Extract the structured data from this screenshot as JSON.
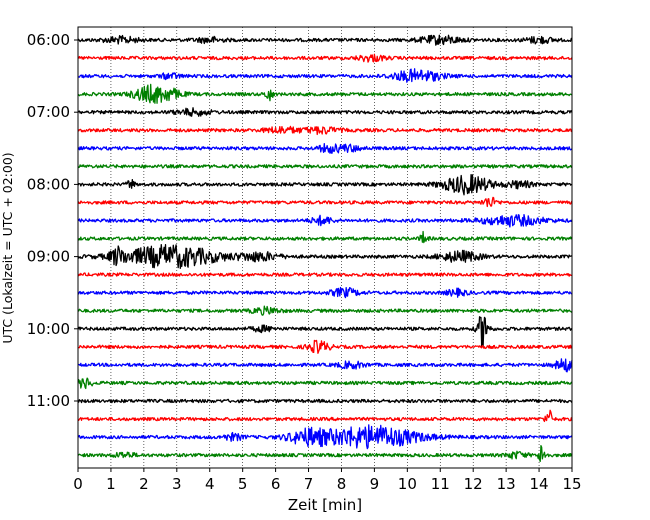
{
  "chart_data": {
    "type": "line",
    "title": "",
    "xlabel": "Zeit  [min]",
    "ylabel": "UTC (Lokalzeit = UTC + 02:00)",
    "xlim": [
      0,
      15
    ],
    "x_ticks": [
      0,
      1,
      2,
      3,
      4,
      5,
      6,
      7,
      8,
      9,
      10,
      11,
      12,
      13,
      14,
      15
    ],
    "y_tick_labels": [
      "06:00",
      "07:00",
      "08:00",
      "09:00",
      "10:00",
      "11:00"
    ],
    "y_tick_trace_index": [
      0,
      4,
      8,
      12,
      16,
      20
    ],
    "grid": "vertical dotted",
    "trace_interval_min": 15,
    "start_time": "06:00",
    "color_cycle": [
      "#000000",
      "#ff0000",
      "#0000ff",
      "#008000"
    ],
    "traces": [
      {
        "index": 0,
        "events": [
          {
            "t": 1.3,
            "amp": 3,
            "dur": 0.5
          },
          {
            "t": 4.0,
            "amp": 2.5,
            "dur": 0.4
          },
          {
            "t": 11.0,
            "amp": 4,
            "dur": 0.6
          },
          {
            "t": 14.0,
            "amp": 3,
            "dur": 0.4
          }
        ]
      },
      {
        "index": 1,
        "events": [
          {
            "t": 8.9,
            "amp": 3,
            "dur": 0.4
          }
        ]
      },
      {
        "index": 2,
        "events": [
          {
            "t": 10.3,
            "amp": 6,
            "dur": 0.7
          },
          {
            "t": 2.8,
            "amp": 2.5,
            "dur": 0.3
          }
        ]
      },
      {
        "index": 3,
        "events": [
          {
            "t": 2.2,
            "amp": 8,
            "dur": 0.5
          },
          {
            "t": 2.8,
            "amp": 4,
            "dur": 0.4
          },
          {
            "t": 5.8,
            "amp": 7,
            "dur": 0.1
          }
        ]
      },
      {
        "index": 4,
        "events": [
          {
            "t": 3.5,
            "amp": 3,
            "dur": 0.5
          }
        ]
      },
      {
        "index": 5,
        "events": [
          {
            "t": 6.2,
            "amp": 3,
            "dur": 0.5
          },
          {
            "t": 7.4,
            "amp": 3,
            "dur": 0.5
          }
        ]
      },
      {
        "index": 6,
        "events": [
          {
            "t": 7.6,
            "amp": 3.5,
            "dur": 0.3
          },
          {
            "t": 8.2,
            "amp": 3,
            "dur": 0.4
          }
        ]
      },
      {
        "index": 7,
        "events": []
      },
      {
        "index": 8,
        "events": [
          {
            "t": 1.6,
            "amp": 5,
            "dur": 0.1
          },
          {
            "t": 11.8,
            "amp": 9,
            "dur": 0.7
          },
          {
            "t": 13.4,
            "amp": 3,
            "dur": 0.4
          }
        ]
      },
      {
        "index": 9,
        "events": [
          {
            "t": 12.5,
            "amp": 5,
            "dur": 0.2
          }
        ]
      },
      {
        "index": 10,
        "events": [
          {
            "t": 7.4,
            "amp": 4,
            "dur": 0.3
          },
          {
            "t": 13.2,
            "amp": 5,
            "dur": 0.9
          }
        ]
      },
      {
        "index": 11,
        "events": [
          {
            "t": 10.5,
            "amp": 6,
            "dur": 0.1
          }
        ]
      },
      {
        "index": 12,
        "events": [
          {
            "t": 1.2,
            "amp": 7,
            "dur": 0.2
          },
          {
            "t": 2.8,
            "amp": 11,
            "dur": 1.4
          },
          {
            "t": 5.5,
            "amp": 4,
            "dur": 0.6
          },
          {
            "t": 11.6,
            "amp": 5,
            "dur": 0.6
          }
        ]
      },
      {
        "index": 13,
        "events": []
      },
      {
        "index": 14,
        "events": [
          {
            "t": 8.1,
            "amp": 4,
            "dur": 0.4
          },
          {
            "t": 11.5,
            "amp": 3,
            "dur": 0.3
          }
        ]
      },
      {
        "index": 15,
        "events": [
          {
            "t": 5.7,
            "amp": 3,
            "dur": 0.4
          }
        ]
      },
      {
        "index": 16,
        "events": [
          {
            "t": 12.3,
            "amp": 18,
            "dur": 0.15
          },
          {
            "t": 5.6,
            "amp": 2.5,
            "dur": 0.3
          }
        ]
      },
      {
        "index": 17,
        "events": [
          {
            "t": 7.3,
            "amp": 6,
            "dur": 0.3
          }
        ]
      },
      {
        "index": 18,
        "events": [
          {
            "t": 8.3,
            "amp": 3,
            "dur": 0.4
          },
          {
            "t": 14.8,
            "amp": 6,
            "dur": 0.3
          }
        ]
      },
      {
        "index": 19,
        "events": [
          {
            "t": 0.2,
            "amp": 5,
            "dur": 0.2
          }
        ]
      },
      {
        "index": 20,
        "events": []
      },
      {
        "index": 21,
        "events": [
          {
            "t": 14.3,
            "amp": 9,
            "dur": 0.1
          }
        ]
      },
      {
        "index": 22,
        "events": [
          {
            "t": 7.0,
            "amp": 7,
            "dur": 0.6
          },
          {
            "t": 8.9,
            "amp": 11,
            "dur": 1.4
          },
          {
            "t": 4.7,
            "amp": 3,
            "dur": 0.3
          }
        ]
      },
      {
        "index": 23,
        "events": [
          {
            "t": 14.1,
            "amp": 12,
            "dur": 0.1
          },
          {
            "t": 13.3,
            "amp": 3,
            "dur": 0.3
          },
          {
            "t": 1.4,
            "amp": 2.5,
            "dur": 0.3
          }
        ]
      }
    ]
  }
}
